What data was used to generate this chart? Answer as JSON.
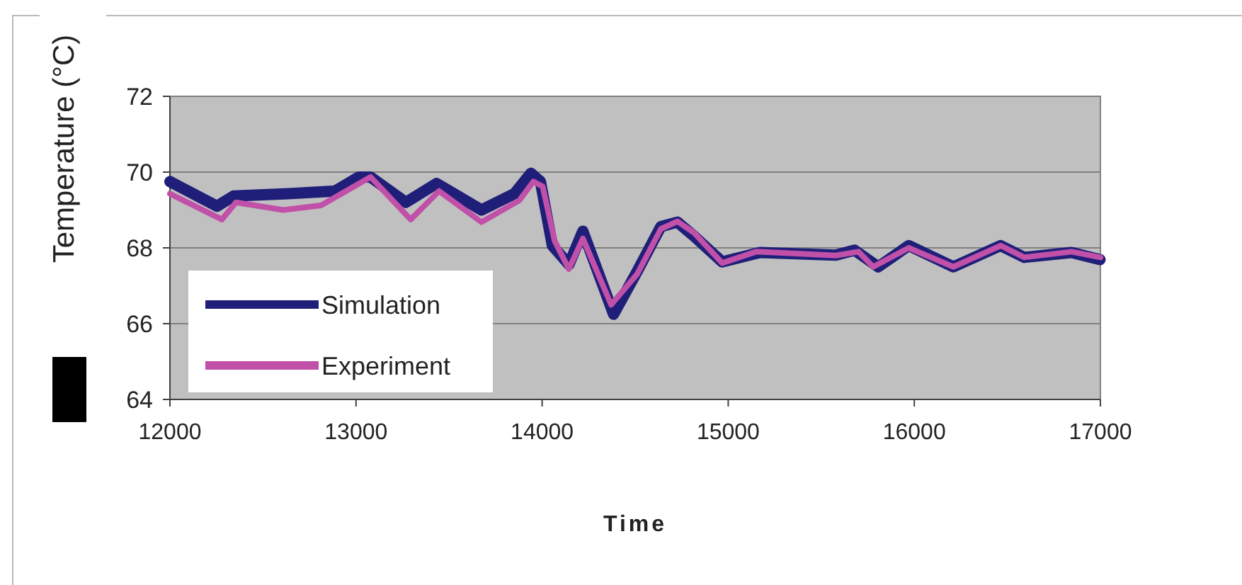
{
  "chart_data": {
    "type": "line",
    "xlabel": "Time",
    "ylabel": "Temperature (°C)",
    "xlim": [
      12000,
      17000
    ],
    "xticks": [
      12000,
      13000,
      14000,
      15000,
      16000,
      17000
    ],
    "ylim": [
      64,
      72
    ],
    "yticks": [
      64,
      66,
      68,
      70,
      72
    ],
    "grid": "y",
    "legend": "bottom left",
    "line_style": "solid",
    "marker": "none",
    "series": [
      {
        "name": "Simulation",
        "color": "#1f1f7a",
        "x": [
          12000,
          12253,
          12342,
          12634,
          12888,
          13015,
          13078,
          13268,
          13433,
          13674,
          13851,
          13940,
          13991,
          14055,
          14144,
          14219,
          14384,
          14511,
          14638,
          14727,
          14816,
          14968,
          15171,
          15578,
          15679,
          15806,
          15970,
          16210,
          16464,
          16591,
          16845,
          16998
        ],
        "values": [
          69.75,
          69.1,
          69.37,
          69.43,
          69.5,
          69.87,
          69.87,
          69.2,
          69.7,
          69.0,
          69.43,
          69.97,
          69.75,
          68.06,
          67.56,
          68.44,
          66.25,
          67.38,
          68.56,
          68.68,
          68.31,
          67.63,
          67.88,
          67.81,
          67.94,
          67.5,
          68.06,
          67.5,
          68.06,
          67.75,
          67.88,
          67.69
        ]
      },
      {
        "name": "Experiment",
        "color": "#c050a8",
        "x": [
          12000,
          12279,
          12355,
          12609,
          12812,
          13078,
          13294,
          13446,
          13674,
          13877,
          13953,
          14003,
          14067,
          14144,
          14219,
          14371,
          14511,
          14638,
          14727,
          14816,
          14968,
          15150,
          15578,
          15700,
          15779,
          15970,
          16210,
          16464,
          16591,
          16845,
          17000
        ],
        "values": [
          69.43,
          68.75,
          69.2,
          69.0,
          69.12,
          69.87,
          68.75,
          69.5,
          68.68,
          69.25,
          69.75,
          69.62,
          68.19,
          67.44,
          68.25,
          66.5,
          67.31,
          68.5,
          68.7,
          68.4,
          67.6,
          67.9,
          67.8,
          67.9,
          67.5,
          68.0,
          67.5,
          68.06,
          67.75,
          67.9,
          67.75
        ]
      }
    ]
  }
}
